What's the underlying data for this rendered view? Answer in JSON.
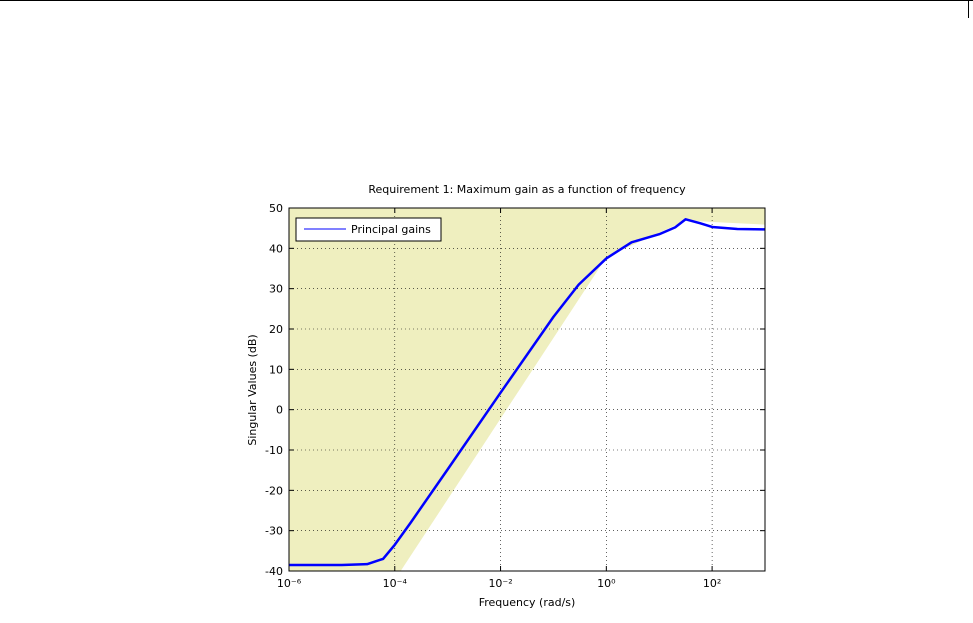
{
  "chart_data": {
    "type": "line",
    "title": "Requirement 1: Maximum gain as a function of frequency",
    "x_label": "Frequency (rad/s)",
    "y_label": "Singular Values (dB)",
    "x_scale": "log",
    "xlim": [
      1e-06,
      1000
    ],
    "ylim": [
      -40,
      50
    ],
    "xticks": [
      {
        "value": 1e-06,
        "label": "10⁻⁶"
      },
      {
        "value": 0.0001,
        "label": "10⁻⁴"
      },
      {
        "value": 0.01,
        "label": "10⁻²"
      },
      {
        "value": 1,
        "label": "10⁰"
      },
      {
        "value": 100,
        "label": "10²"
      }
    ],
    "yticks": [
      -40,
      -30,
      -20,
      -10,
      0,
      10,
      20,
      30,
      40,
      50
    ],
    "grid": true,
    "legend": "upper left",
    "x": [
      1e-06,
      1e-05,
      3e-05,
      6e-05,
      0.0001,
      0.0002,
      0.001,
      0.01,
      0.1,
      0.3,
      1,
      3,
      10,
      20,
      31.6,
      60,
      100,
      300,
      1000
    ],
    "series": [
      {
        "name": "Principal gains",
        "color": "#0000ff",
        "values": [
          -38.5,
          -38.5,
          -38.3,
          -37,
          -33.5,
          -28,
          -14.8,
          4.2,
          23,
          31,
          37.5,
          41.5,
          43.5,
          45.2,
          47.2,
          46.2,
          45.3,
          44.8,
          44.7
        ]
      }
    ],
    "bound": {
      "color": "#efefbf",
      "x": [
        0.000126,
        1,
        10,
        31.6,
        1000
      ],
      "y": [
        -40,
        38,
        44,
        47,
        46
      ]
    }
  }
}
